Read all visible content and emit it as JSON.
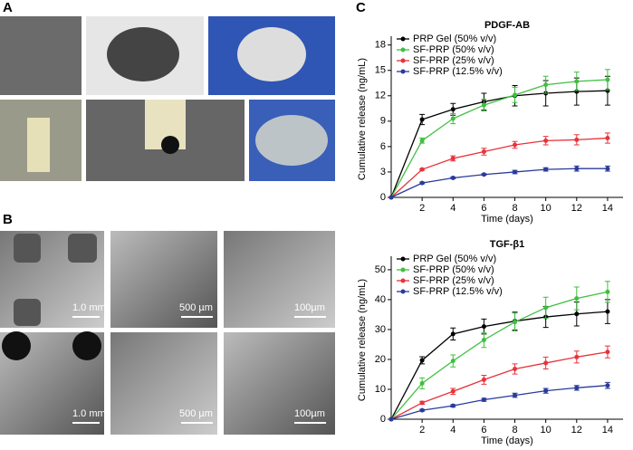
{
  "panel_labels": [
    "A",
    "B",
    "C"
  ],
  "scale_bars": [
    "1.0 mm",
    "500 µm",
    "100µm",
    "1.0 mm",
    "500 µm",
    "100µm"
  ],
  "chart_data": [
    {
      "type": "line",
      "title": "PDGF-AB",
      "x_label": "Time (days)",
      "y_label": "Cumulative release (ng/mL)",
      "x": [
        0,
        2,
        4,
        6,
        8,
        10,
        12,
        14
      ],
      "xlim": [
        0,
        15
      ],
      "xticks": [
        2,
        4,
        6,
        8,
        10,
        12,
        14
      ],
      "ylim": [
        0,
        18.5
      ],
      "yticks": [
        0,
        3,
        6,
        9,
        12,
        15,
        18
      ],
      "legend": "upper left",
      "series": [
        {
          "name": "PRP Gel (50% v/v)",
          "color": "#000000",
          "values": [
            0,
            9.2,
            10.4,
            11.3,
            12.0,
            12.3,
            12.5,
            12.6
          ],
          "errors": [
            0,
            0.6,
            0.7,
            1.0,
            1.2,
            1.5,
            1.6,
            1.7
          ]
        },
        {
          "name": "SF-PRP (50% v/v)",
          "color": "#3fbf3f",
          "values": [
            0,
            6.7,
            9.3,
            10.9,
            12.1,
            13.3,
            13.7,
            13.9
          ],
          "errors": [
            0,
            0.3,
            0.6,
            0.7,
            0.9,
            1.0,
            1.1,
            1.2
          ]
        },
        {
          "name": "SF-PRP (25% v/v)",
          "color": "#e8333a",
          "values": [
            0,
            3.3,
            4.6,
            5.4,
            6.2,
            6.7,
            6.8,
            7.0
          ],
          "errors": [
            0,
            0.1,
            0.3,
            0.4,
            0.4,
            0.5,
            0.6,
            0.6
          ]
        },
        {
          "name": "SF-PRP (12.5% v/v)",
          "color": "#2a3a9c",
          "values": [
            0,
            1.7,
            2.3,
            2.7,
            3.0,
            3.3,
            3.4,
            3.4
          ],
          "errors": [
            0,
            0.1,
            0.1,
            0.1,
            0.2,
            0.2,
            0.3,
            0.3
          ]
        }
      ]
    },
    {
      "type": "line",
      "title": "TGF-β1",
      "x_label": "Time (days)",
      "y_label": "Cumulative release (ng/mL)",
      "x": [
        0,
        2,
        4,
        6,
        8,
        10,
        12,
        14
      ],
      "xlim": [
        0,
        15
      ],
      "xticks": [
        2,
        4,
        6,
        8,
        10,
        12,
        14
      ],
      "ylim": [
        0,
        53
      ],
      "yticks": [
        0,
        10,
        20,
        30,
        40,
        50
      ],
      "legend": "upper left",
      "series": [
        {
          "name": "PRP Gel (50% v/v)",
          "color": "#000000",
          "values": [
            0,
            19.7,
            28.5,
            31,
            32.8,
            34.2,
            35.2,
            36
          ],
          "errors": [
            0,
            1.2,
            2,
            2.5,
            3,
            3.5,
            4,
            4
          ]
        },
        {
          "name": "SF-PRP (50% v/v)",
          "color": "#3fbf3f",
          "values": [
            0,
            12,
            19.5,
            26.5,
            32.5,
            37.3,
            40.4,
            42.6
          ],
          "errors": [
            0,
            1.8,
            2,
            2.5,
            3,
            3.5,
            3.8,
            3.5
          ]
        },
        {
          "name": "SF-PRP (25% v/v)",
          "color": "#e8333a",
          "values": [
            0,
            5.5,
            9.3,
            13.2,
            16.8,
            18.8,
            20.8,
            22.5
          ],
          "errors": [
            0,
            0.5,
            1,
            1.5,
            1.7,
            2,
            2,
            2
          ]
        },
        {
          "name": "SF-PRP (12.5% v/v)",
          "color": "#2a3a9c",
          "values": [
            0,
            3,
            4.5,
            6.5,
            8,
            9.5,
            10.5,
            11.3
          ],
          "errors": [
            0,
            0.3,
            0.4,
            0.5,
            0.7,
            0.8,
            0.8,
            1
          ]
        }
      ]
    }
  ]
}
